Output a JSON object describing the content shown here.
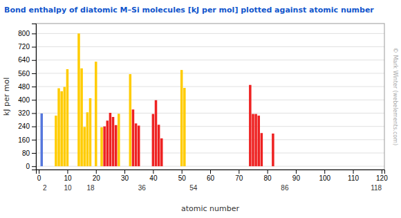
{
  "chart_data": {
    "type": "bar",
    "title": "Bond enthalpy of diatomic M–Si molecules [kJ per mol] plotted against atomic number",
    "title_color": "#1155cc",
    "ylabel": "kJ per mol",
    "xlabel": "atomic number",
    "annotations": [
      "© Mark Winter (webelements.com)"
    ],
    "x": [
      1,
      6,
      7,
      8,
      9,
      10,
      14,
      15,
      16,
      17,
      18,
      20,
      22,
      23,
      24,
      25,
      26,
      27,
      28,
      32,
      33,
      34,
      35,
      40,
      41,
      42,
      43,
      50,
      51,
      74,
      75,
      76,
      77,
      78,
      82
    ],
    "values": [
      318,
      305,
      470,
      452,
      478,
      585,
      800,
      590,
      237,
      325,
      410,
      630,
      235,
      240,
      275,
      322,
      297,
      248,
      316,
      555,
      342,
      258,
      245,
      315,
      398,
      250,
      168,
      580,
      472,
      490,
      315,
      315,
      305,
      200,
      197
    ],
    "colors": [
      "#5577dd",
      "#ffcc00",
      "#ffcc00",
      "#ffcc00",
      "#ffcc00",
      "#ffcc00",
      "#ffcc00",
      "#ffcc00",
      "#ffcc00",
      "#ffcc00",
      "#ffcc00",
      "#ffcc00",
      "#ffcc00",
      "#ee2222",
      "#ee2222",
      "#ee2222",
      "#ee2222",
      "#ee2222",
      "#ffcc00",
      "#ffcc00",
      "#ee2222",
      "#ee2222",
      "#ee2222",
      "#ee2222",
      "#ee2222",
      "#ee2222",
      "#ee2222",
      "#ffcc00",
      "#ffcc00",
      "#ee2222",
      "#ee2222",
      "#ee2222",
      "#ee2222",
      "#ee2222",
      "#ee2222"
    ],
    "xlim": [
      -1,
      121
    ],
    "xticks": [
      0,
      10,
      20,
      30,
      40,
      50,
      60,
      70,
      80,
      90,
      100,
      110,
      120
    ],
    "x2ticks": [
      2,
      10,
      18,
      36,
      54,
      86,
      118
    ],
    "ylim": [
      -20,
      860
    ],
    "yticks": [
      0,
      80,
      160,
      240,
      320,
      400,
      480,
      560,
      640,
      720,
      800
    ],
    "grid": true
  }
}
